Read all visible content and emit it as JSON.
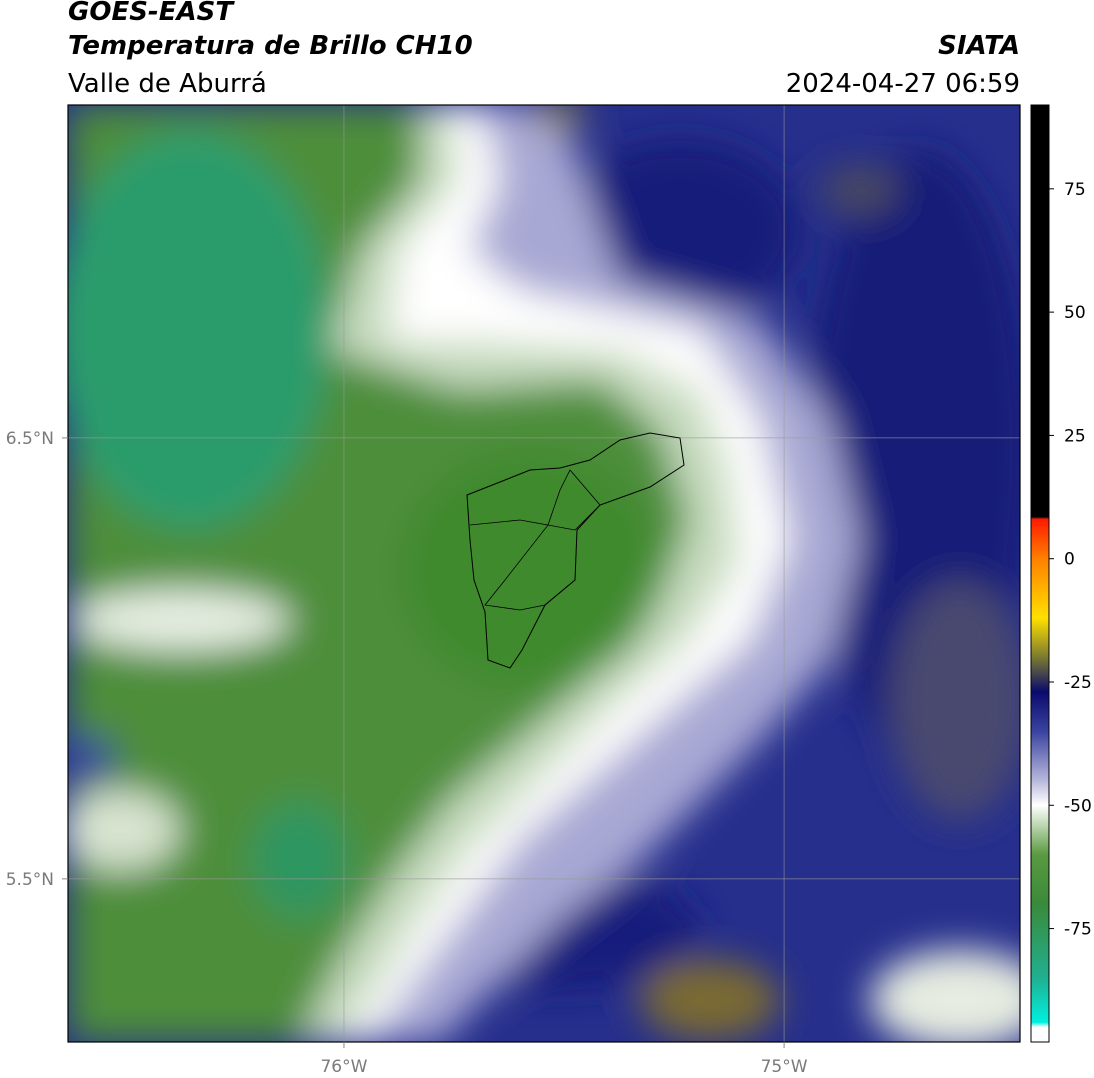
{
  "header": {
    "title": "GOES-EAST",
    "subtitle": "Temperatura de Brillo CH10",
    "region": "Valle de Aburrá",
    "source": "SIATA",
    "timestamp": "2024-04-27 06:59"
  },
  "map": {
    "xlim": [
      -76.627,
      -74.464
    ],
    "ylim": [
      5.13,
      7.255
    ],
    "xticks": [
      {
        "value": -76,
        "label": "76°W"
      },
      {
        "value": -75,
        "label": "75°W"
      }
    ],
    "yticks": [
      {
        "value": 5.5,
        "label": "5.5°N"
      },
      {
        "value": 6.5,
        "label": "6.5°N"
      }
    ],
    "grid": true
  },
  "colorbar": {
    "lim": [
      -98,
      92
    ],
    "ticks": [
      75,
      50,
      25,
      0,
      -25,
      -50,
      -75
    ],
    "stops": [
      {
        "value": 92,
        "color": "#000000"
      },
      {
        "value": 8.5,
        "color": "#000000"
      },
      {
        "value": 8,
        "color": "#ff1a00"
      },
      {
        "value": 0,
        "color": "#ff8000"
      },
      {
        "value": -12,
        "color": "#ffe000"
      },
      {
        "value": -20,
        "color": "#7a7a30"
      },
      {
        "value": -27,
        "color": "#0a0a6e"
      },
      {
        "value": -35,
        "color": "#3a43a0"
      },
      {
        "value": -45,
        "color": "#b8b8dc"
      },
      {
        "value": -50,
        "color": "#ffffff"
      },
      {
        "value": -60,
        "color": "#5a9a40"
      },
      {
        "value": -70,
        "color": "#3a8a3a"
      },
      {
        "value": -85,
        "color": "#20b090"
      },
      {
        "value": -94,
        "color": "#00f0e0"
      },
      {
        "value": -95,
        "color": "#ffffff"
      },
      {
        "value": -98,
        "color": "#ffffff"
      }
    ]
  }
}
